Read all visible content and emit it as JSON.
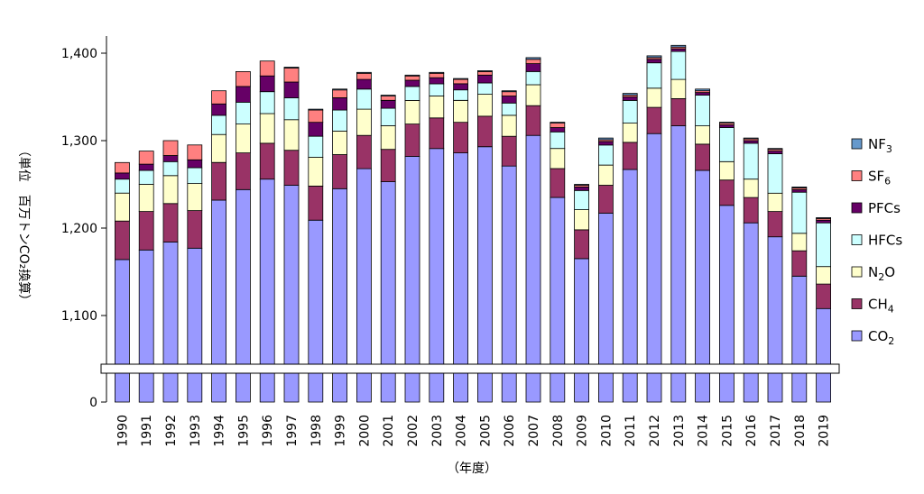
{
  "chart_data": {
    "type": "bar",
    "stacked": true,
    "title": "",
    "ylabel": "（単位　百万トンCO₂換算）",
    "xlabel": "（年度）",
    "y_break": {
      "below": 1100,
      "above": 0
    },
    "ylim": [
      1100,
      1410
    ],
    "yticks": [
      {
        "value": 1400,
        "label": "1,400"
      },
      {
        "value": 1300,
        "label": "1,300"
      },
      {
        "value": 1200,
        "label": "1,200"
      },
      {
        "value": 1100,
        "label": "1,100"
      },
      {
        "value": 0,
        "label": "0"
      }
    ],
    "grid": false,
    "legend_position": "right",
    "categories": [
      "1990",
      "1991",
      "1992",
      "1993",
      "1994",
      "1995",
      "1996",
      "1997",
      "1998",
      "1999",
      "2000",
      "2001",
      "2002",
      "2003",
      "2004",
      "2005",
      "2006",
      "2007",
      "2008",
      "2009",
      "2010",
      "2011",
      "2012",
      "2013",
      "2014",
      "2015",
      "2016",
      "2017",
      "2018",
      "2019"
    ],
    "series": [
      {
        "name": "CO2",
        "label_main": "CO",
        "label_sub": "2",
        "color": "#9999ff",
        "values": [
          1164,
          1175,
          1184,
          1177,
          1232,
          1244,
          1256,
          1249,
          1209,
          1245,
          1268,
          1253,
          1282,
          1291,
          1286,
          1293,
          1271,
          1306,
          1235,
          1165,
          1217,
          1267,
          1308,
          1317,
          1266,
          1226,
          1206,
          1190,
          1145,
          1108
        ]
      },
      {
        "name": "CH4",
        "label_main": "CH",
        "label_sub": "4",
        "color": "#993366",
        "values": [
          44,
          44,
          44,
          43,
          43,
          42,
          41,
          40,
          39,
          39,
          38,
          37,
          37,
          35,
          35,
          35,
          34,
          34,
          33,
          33,
          32,
          31,
          30,
          31,
          30,
          29,
          29,
          29,
          29,
          28
        ]
      },
      {
        "name": "N2O",
        "label_main": "N",
        "label_sub": "2",
        "label_tail": "O",
        "color": "#ffffcc",
        "values": [
          32,
          31,
          32,
          31,
          32,
          33,
          34,
          35,
          33,
          27,
          30,
          27,
          27,
          25,
          25,
          25,
          24,
          24,
          23,
          23,
          23,
          22,
          22,
          22,
          21,
          21,
          21,
          21,
          20,
          20
        ]
      },
      {
        "name": "HFCs",
        "label_main": "HFCs",
        "color": "#ccffff",
        "values": [
          16,
          16,
          16,
          18,
          22,
          25,
          25,
          25,
          24,
          24,
          23,
          20,
          16,
          14,
          12,
          13,
          14,
          15,
          19,
          22,
          23,
          26,
          29,
          32,
          35,
          39,
          41,
          45,
          47,
          50
        ]
      },
      {
        "name": "PFCs",
        "label_main": "PFCs",
        "color": "#660066",
        "values": [
          7,
          7,
          7,
          9,
          13,
          18,
          18,
          18,
          16,
          14,
          11,
          9,
          7,
          7,
          7,
          9,
          8,
          9,
          5,
          4,
          4,
          4,
          4,
          3,
          3,
          3,
          3,
          3,
          3,
          3
        ]
      },
      {
        "name": "SF6",
        "label_main": "SF",
        "label_sub": "6",
        "color": "#ff8080",
        "values": [
          12,
          15,
          17,
          17,
          15,
          17,
          17,
          16,
          14,
          9,
          7,
          5,
          5,
          5,
          5,
          4,
          5,
          5,
          5,
          2,
          2,
          2,
          2,
          2,
          2,
          2,
          2,
          2,
          2,
          2
        ]
      },
      {
        "name": "NF3",
        "label_main": "NF",
        "label_sub": "3",
        "color": "#6699cc",
        "values": [
          0,
          0,
          0,
          0,
          0,
          0,
          0,
          1,
          1,
          1,
          1,
          1,
          1,
          1,
          1,
          1,
          1,
          2,
          1,
          1,
          2,
          2,
          2,
          2,
          2,
          1,
          1,
          1,
          1,
          1
        ]
      }
    ]
  }
}
